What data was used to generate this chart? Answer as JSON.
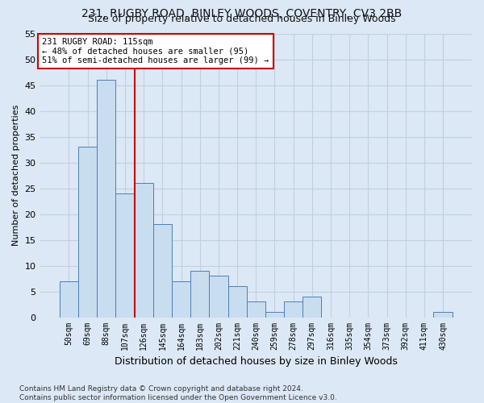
{
  "title_line1": "231, RUGBY ROAD, BINLEY WOODS, COVENTRY, CV3 2BB",
  "title_line2": "Size of property relative to detached houses in Binley Woods",
  "xlabel": "Distribution of detached houses by size in Binley Woods",
  "ylabel": "Number of detached properties",
  "footnote": "Contains HM Land Registry data © Crown copyright and database right 2024.\nContains public sector information licensed under the Open Government Licence v3.0.",
  "bin_labels": [
    "50sqm",
    "69sqm",
    "88sqm",
    "107sqm",
    "126sqm",
    "145sqm",
    "164sqm",
    "183sqm",
    "202sqm",
    "221sqm",
    "240sqm",
    "259sqm",
    "278sqm",
    "297sqm",
    "316sqm",
    "335sqm",
    "354sqm",
    "373sqm",
    "392sqm",
    "411sqm",
    "430sqm"
  ],
  "bar_values": [
    7,
    33,
    46,
    24,
    26,
    18,
    7,
    9,
    8,
    6,
    3,
    1,
    3,
    4,
    0,
    0,
    0,
    0,
    0,
    0,
    1
  ],
  "bar_color": "#c9ddf0",
  "bar_edge_color": "#4a7fb5",
  "grid_color": "#c0d0e0",
  "vline_color": "#cc0000",
  "annotation_text": "231 RUGBY ROAD: 115sqm\n← 48% of detached houses are smaller (95)\n51% of semi-detached houses are larger (99) →",
  "annotation_box_color": "#ffffff",
  "annotation_box_edge": "#cc0000",
  "ylim": [
    0,
    55
  ],
  "yticks": [
    0,
    5,
    10,
    15,
    20,
    25,
    30,
    35,
    40,
    45,
    50,
    55
  ],
  "background_color": "#dce8f5",
  "title_fontsize": 10,
  "subtitle_fontsize": 9,
  "ylabel_fontsize": 8,
  "xlabel_fontsize": 9,
  "tick_fontsize": 7,
  "annotation_fontsize": 7.5,
  "footnote_fontsize": 6.5
}
